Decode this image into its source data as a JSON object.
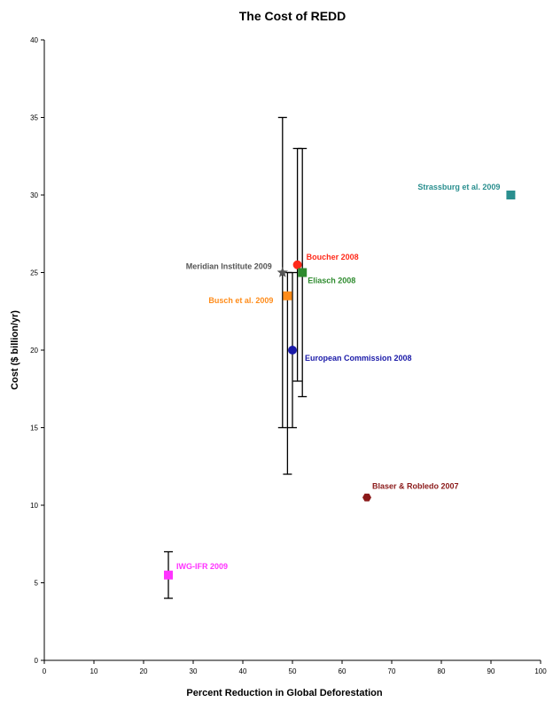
{
  "chart_data": {
    "type": "scatter",
    "title": "The Cost of REDD",
    "xlabel": "Percent Reduction in Global Deforestation",
    "ylabel": "Cost ($ billion/yr)",
    "xlim": [
      0,
      100
    ],
    "ylim": [
      0,
      40
    ],
    "x_ticks": [
      0,
      10,
      20,
      30,
      40,
      50,
      60,
      70,
      80,
      90,
      100
    ],
    "y_ticks": [
      0,
      5,
      10,
      15,
      20,
      25,
      30,
      35,
      40
    ],
    "grid": false,
    "legend": "none",
    "points": [
      {
        "label": "Strassburg et al. 2009",
        "x": 94,
        "y": 30,
        "color": "#2a8f8f",
        "marker": "square"
      },
      {
        "label": "Meridian Institute 2009",
        "x": 48,
        "y": 25,
        "color": "#555555",
        "marker": "star",
        "err_low": 15,
        "err_high": 35
      },
      {
        "label": "Boucher 2008",
        "x": 51,
        "y": 25.5,
        "color": "#ff2a1a",
        "marker": "circle",
        "err_low": 18,
        "err_high": 33
      },
      {
        "label": "Eliasch 2008",
        "x": 52,
        "y": 25,
        "color": "#2e8b2e",
        "marker": "square",
        "err_low": 17,
        "err_high": 33
      },
      {
        "label": "Busch et al. 2009",
        "x": 49,
        "y": 23.5,
        "color": "#ff8c1a",
        "marker": "square",
        "err_low": 12,
        "err_high": 25
      },
      {
        "label": "European Commission 2008",
        "x": 50,
        "y": 20,
        "color": "#1a1aa8",
        "marker": "circle",
        "err_low": 15,
        "err_high": 25
      },
      {
        "label": "Blaser & Robledo 2007",
        "x": 65,
        "y": 10.5,
        "color": "#8b1a1a",
        "marker": "hexagon"
      },
      {
        "label": "IWG-IFR 2009",
        "x": 25,
        "y": 5.5,
        "color": "#ff33ff",
        "marker": "square",
        "err_low": 4,
        "err_high": 7
      }
    ]
  }
}
